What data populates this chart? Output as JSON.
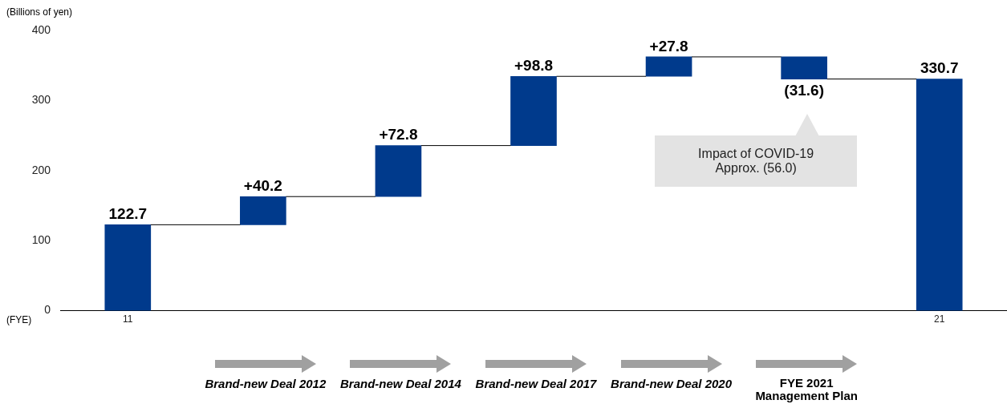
{
  "chart_data": {
    "type": "bar",
    "ylabel": "(Billions of yen)",
    "xlabel": "(FYE)",
    "categories": [
      "11",
      null,
      null,
      null,
      null,
      null,
      "21"
    ],
    "values": [
      122.7,
      40.2,
      72.8,
      98.8,
      27.8,
      -31.6,
      330.7
    ],
    "base": [
      0,
      122.7,
      162.9,
      235.7,
      334.5,
      362.3,
      0
    ],
    "color": "#003a8c",
    "value_labels": [
      "122.7",
      "+40.2",
      "+72.8",
      "+98.8",
      "+27.8",
      "(31.6)",
      "330.7"
    ],
    "ylim": [
      0,
      400
    ],
    "yticks": [
      0,
      100,
      200,
      300,
      400
    ],
    "grid": false,
    "legend": false,
    "annotations": [
      {
        "text": "Impact of COVID-19 Approx. (56.0)"
      },
      "Brand-new Deal 2012",
      "Brand-new Deal 2014",
      "Brand-new Deal 2017",
      "Brand-new Deal 2020",
      "FYE 2021 Management Plan"
    ]
  }
}
